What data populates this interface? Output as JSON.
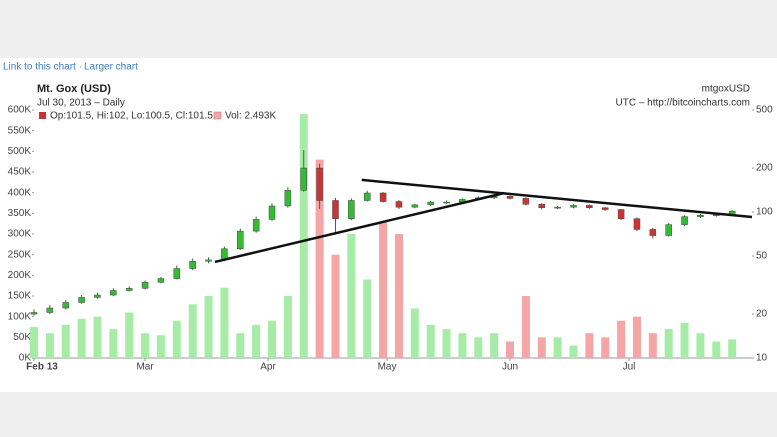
{
  "links": [
    "Link to this chart",
    "Larger chart"
  ],
  "link_separator": "·",
  "chart_data": {
    "type": "candlestick",
    "title": "Mt. Gox (USD)",
    "subtitle": "Jul 30, 2013 – Daily",
    "symbol": "mtgoxUSD",
    "source": "UTC – http://bitcoincharts.com",
    "legend": [
      "Op:101.5, Hi:102, Lo:100.5, Cl:101.5",
      "Vol: 2.493K"
    ],
    "up_color": "#33bb33",
    "down_color": "#cc3333",
    "volume_up_color": "#a6eca6",
    "volume_down_color": "#f4a6a6",
    "x": [
      0,
      4,
      8,
      12,
      16,
      20,
      24,
      28,
      32,
      36,
      40,
      44,
      48,
      52,
      56,
      60,
      64,
      68,
      72,
      76,
      80,
      84,
      88,
      92,
      96,
      100,
      104,
      108,
      112,
      116,
      120,
      124,
      128,
      132,
      136,
      140,
      144,
      148,
      152,
      156,
      160,
      164,
      168,
      172,
      176
    ],
    "open": [
      20,
      20.5,
      22,
      24,
      26,
      27,
      29,
      30,
      33,
      35,
      41,
      46,
      47,
      56,
      74,
      89,
      110,
      141,
      200,
      120,
      90,
      120,
      135,
      118,
      108,
      112,
      117,
      117,
      122,
      125,
      128,
      124,
      113,
      107,
      108,
      111,
      107,
      104,
      90,
      76,
      69,
      82,
      93,
      95,
      96
    ],
    "high": [
      21.5,
      23,
      25,
      27,
      28,
      30,
      31,
      34,
      36,
      43,
      48,
      49,
      58,
      77,
      93,
      115,
      148,
      266,
      214,
      125,
      124,
      140,
      137,
      121,
      114,
      119,
      120,
      124,
      128,
      131,
      130,
      126,
      115,
      110,
      113,
      113,
      108,
      105,
      92,
      78,
      84,
      95,
      97,
      98,
      103
    ],
    "low": [
      19.5,
      20,
      21.5,
      23.5,
      25.5,
      26.5,
      28.5,
      29.5,
      32.5,
      34.5,
      40,
      44.5,
      46,
      55,
      72,
      87,
      107,
      138,
      105,
      70,
      88,
      118,
      116,
      105,
      106,
      110,
      114,
      115,
      120,
      123,
      122,
      111,
      104,
      105,
      106,
      105,
      102,
      88,
      74,
      66,
      68,
      80,
      91,
      93,
      94
    ],
    "close": [
      20.5,
      22,
      24,
      26,
      27,
      29,
      30,
      33,
      35,
      41,
      46,
      47,
      56,
      74,
      89,
      110,
      141,
      200,
      120,
      90,
      120,
      135,
      118,
      108,
      112,
      117,
      117,
      122,
      125,
      128,
      124,
      113,
      107,
      108,
      111,
      107,
      104,
      90,
      76,
      69,
      82,
      93,
      95,
      96,
      101.5
    ],
    "volume": [
      75,
      60,
      80,
      95,
      100,
      70,
      110,
      60,
      55,
      90,
      130,
      150,
      170,
      60,
      80,
      90,
      150,
      590,
      480,
      250,
      300,
      190,
      330,
      300,
      120,
      80,
      70,
      60,
      50,
      60,
      40,
      150,
      50,
      50,
      30,
      60,
      50,
      90,
      100,
      60,
      70,
      85,
      60,
      40,
      45
    ],
    "xlim": [
      0,
      181
    ],
    "xticks": [
      {
        "value": 0,
        "label": "Feb 13"
      },
      {
        "value": 28,
        "label": "Mar"
      },
      {
        "value": 59,
        "label": "Apr"
      },
      {
        "value": 89,
        "label": "May"
      },
      {
        "value": 120,
        "label": "Jun"
      },
      {
        "value": 150,
        "label": "Jul"
      }
    ],
    "ylim": [
      0,
      600
    ],
    "yticks": [
      {
        "value": 0,
        "label": "0K"
      },
      {
        "value": 50,
        "label": "50K"
      },
      {
        "value": 100,
        "label": "100K"
      },
      {
        "value": 150,
        "label": "150K"
      },
      {
        "value": 200,
        "label": "200K"
      },
      {
        "value": 250,
        "label": "250K"
      },
      {
        "value": 300,
        "label": "300K"
      },
      {
        "value": 350,
        "label": "350K"
      },
      {
        "value": 400,
        "label": "400K"
      },
      {
        "value": 450,
        "label": "450K"
      },
      {
        "value": 500,
        "label": "500K"
      },
      {
        "value": 550,
        "label": "550K"
      },
      {
        "value": 600,
        "label": "600K"
      }
    ],
    "y2lim": [
      10,
      500
    ],
    "y2ticks": [
      10,
      20,
      50,
      100,
      200,
      500
    ],
    "y2_log": true,
    "trend_lines": [
      {
        "x": [
          45.6,
          118.6
        ],
        "y": [
          45.5,
          135
        ]
      },
      {
        "x": [
          82.6,
          181
        ],
        "y": [
          166,
          92.5
        ]
      }
    ]
  }
}
